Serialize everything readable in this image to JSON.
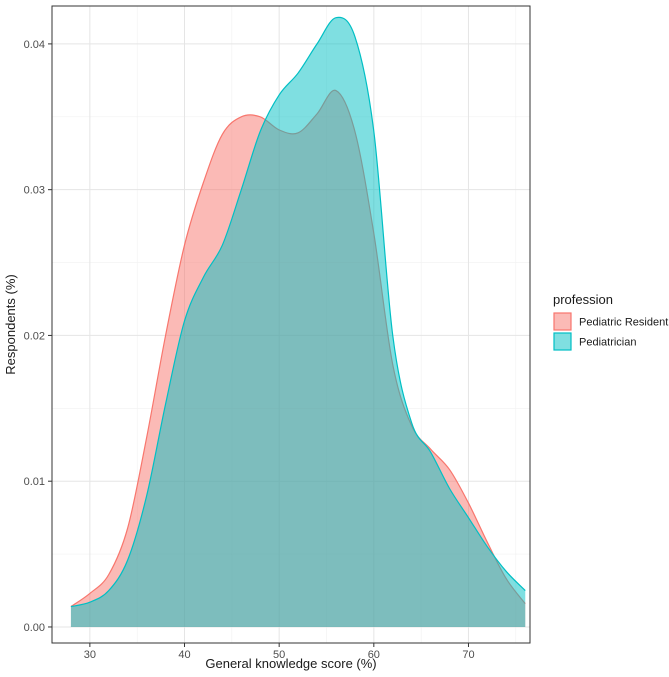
{
  "chart_data": {
    "type": "area",
    "xlabel": "General knowledge score (%)",
    "ylabel": "Respondents (%)",
    "xlim": [
      26,
      76.5
    ],
    "ylim": [
      -0.0011,
      0.0426
    ],
    "xticks": [
      30,
      40,
      50,
      60,
      70
    ],
    "yticks": [
      0.0,
      0.01,
      0.02,
      0.03,
      0.04
    ],
    "xtick_labels": [
      "30",
      "40",
      "50",
      "60",
      "70"
    ],
    "ytick_labels": [
      "0.00",
      "0.01",
      "0.02",
      "0.03",
      "0.04"
    ],
    "grid": true,
    "legend": {
      "title": "profession",
      "position": "right",
      "entries": [
        "Pediatric Resident",
        "Pediatrician"
      ]
    },
    "series": [
      {
        "name": "Pediatric Resident",
        "color": "#F8766D",
        "x": [
          28,
          30,
          32,
          34,
          36,
          38,
          40,
          42,
          44,
          46,
          48,
          50,
          52,
          54,
          56,
          58,
          60,
          62,
          64,
          66,
          68,
          70,
          72,
          74,
          76
        ],
        "y": [
          0.0014,
          0.0023,
          0.0036,
          0.0068,
          0.013,
          0.02,
          0.0262,
          0.0305,
          0.0338,
          0.035,
          0.035,
          0.0341,
          0.0339,
          0.0352,
          0.0368,
          0.034,
          0.027,
          0.018,
          0.0138,
          0.0122,
          0.0108,
          0.0085,
          0.0058,
          0.0033,
          0.0016
        ]
      },
      {
        "name": "Pediatrician",
        "color": "#00BFC4",
        "x": [
          28,
          30,
          32,
          34,
          36,
          38,
          40,
          42,
          44,
          46,
          48,
          50,
          52,
          54,
          56,
          58,
          60,
          62,
          64,
          66,
          68,
          70,
          72,
          74,
          76
        ],
        "y": [
          0.0014,
          0.0017,
          0.0025,
          0.0046,
          0.009,
          0.0153,
          0.021,
          0.024,
          0.0262,
          0.03,
          0.034,
          0.0365,
          0.038,
          0.04,
          0.0418,
          0.0405,
          0.034,
          0.02,
          0.014,
          0.012,
          0.0095,
          0.0075,
          0.0055,
          0.0038,
          0.0025
        ]
      }
    ]
  }
}
